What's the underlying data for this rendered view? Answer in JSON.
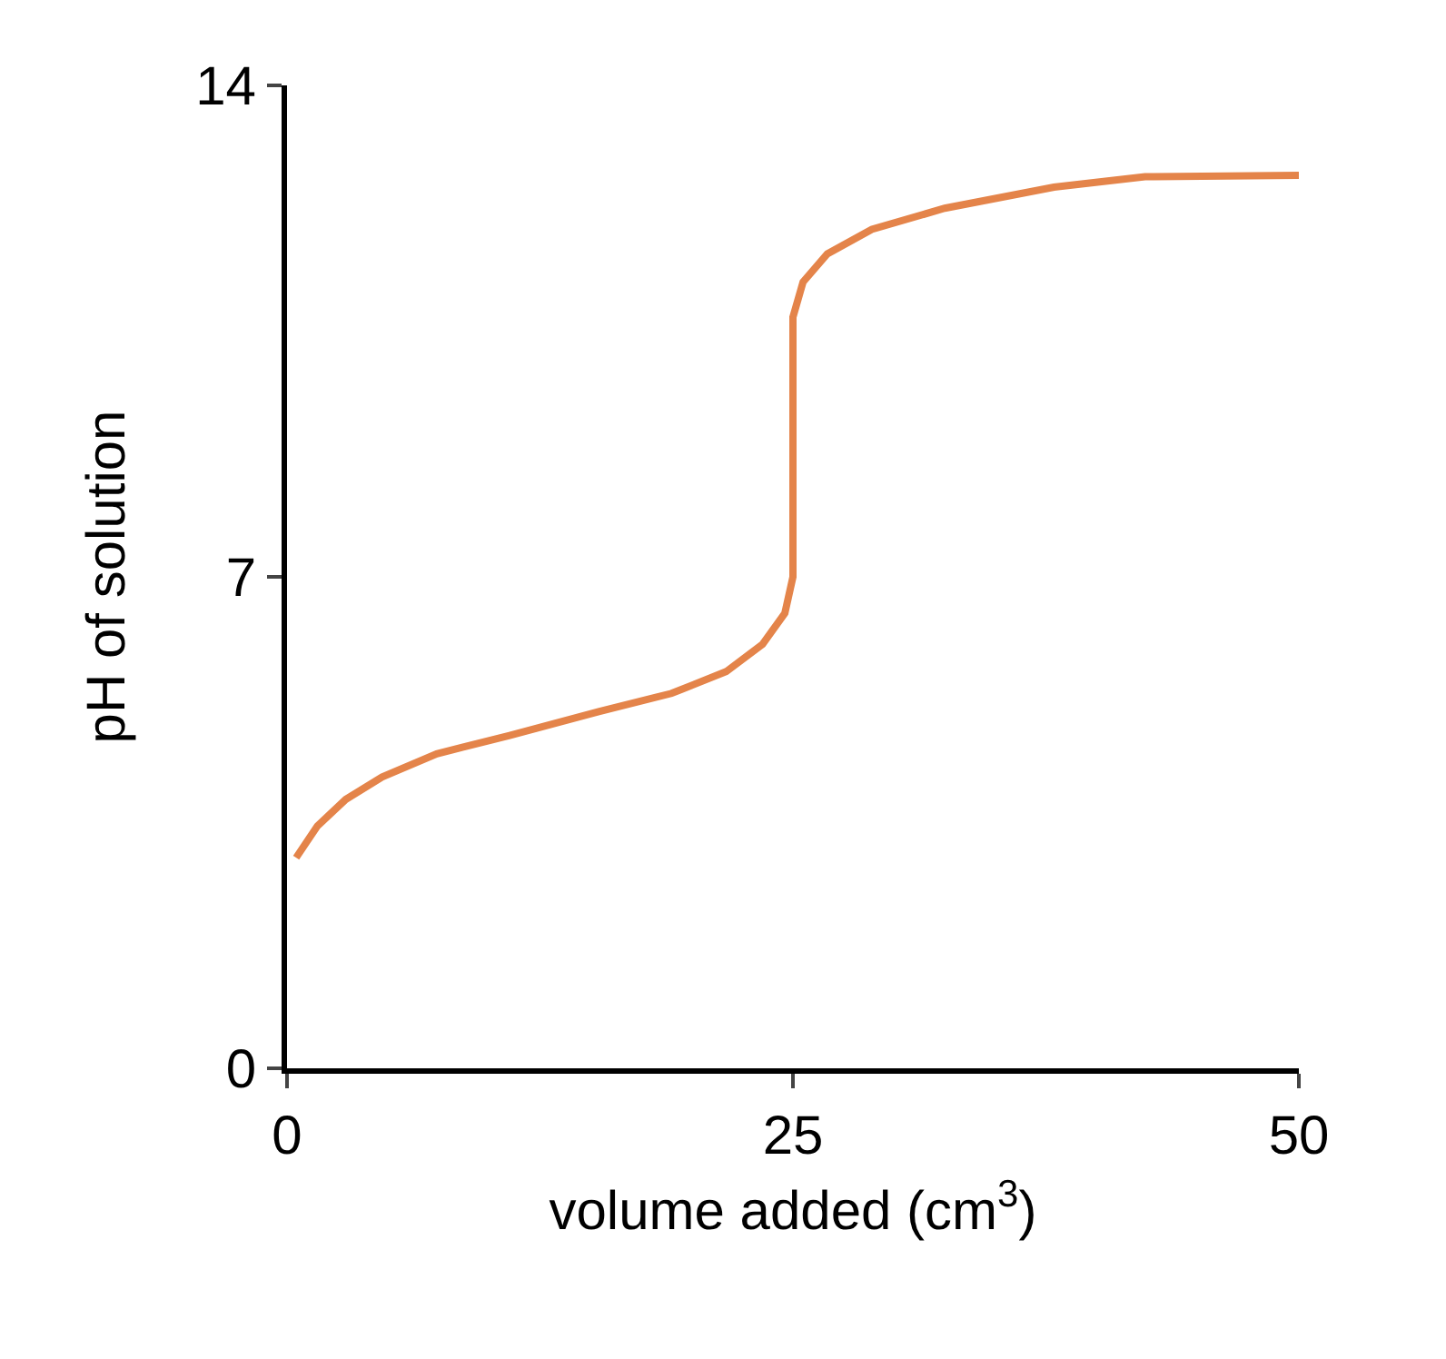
{
  "chart_data": {
    "type": "line",
    "xlabel": "volume added (cm$^{3}$)",
    "ylabel": "pH of solution",
    "xlim": [
      0,
      50
    ],
    "xticks": [
      0,
      25,
      50
    ],
    "ylim": [
      0,
      14
    ],
    "yticks": [
      0,
      7,
      14
    ],
    "marker": "none",
    "line_style": "solid",
    "x": [
      0.45,
      1.5,
      2.9,
      4.7,
      7.4,
      11,
      15.4,
      19,
      21.7,
      23.5,
      24.6,
      25.0,
      25.0,
      25.0,
      25.5,
      26.7,
      28.9,
      32.5,
      37.9,
      42.4,
      50
    ],
    "series": [
      {
        "color": "#e4844a",
        "values": [
          3.0,
          3.45,
          3.83,
          4.15,
          4.48,
          4.74,
          5.08,
          5.34,
          5.65,
          6.04,
          6.48,
          7.0,
          8.8,
          10.7,
          11.2,
          11.6,
          11.95,
          12.25,
          12.55,
          12.7,
          12.72
        ]
      }
    ]
  }
}
